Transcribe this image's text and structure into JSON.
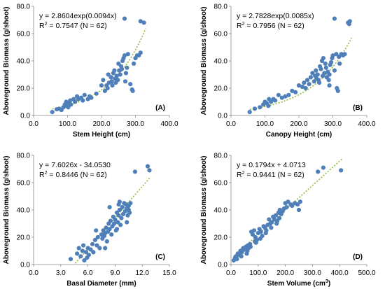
{
  "chart_data": [
    {
      "type": "scatter",
      "panel_label": "(A)",
      "xlabel": "Stem Height (cm)",
      "ylabel": "Aboveground Biomass (g/shoot)",
      "xlim": [
        0,
        400
      ],
      "ylim": [
        0,
        80
      ],
      "xticks": [
        "0.0",
        "100.0",
        "200.0",
        "300.0",
        "400.0"
      ],
      "yticks": [
        "0.0",
        "20.0",
        "40.0",
        "60.0",
        "80.0"
      ],
      "equation": "y = 2.8604exp(0.0094x)",
      "r2_prefix": "R",
      "r2_sup": "2",
      "r2_value": " = 0.7547 (N = 62)",
      "trend": {
        "kind": "exp",
        "a": 2.8604,
        "b": 0.0094,
        "x0": 55,
        "x1": 330
      },
      "legend": "none",
      "grid": false,
      "points": [
        [
          55,
          2.5
        ],
        [
          68,
          4.5
        ],
        [
          75,
          5
        ],
        [
          82,
          4
        ],
        [
          88,
          6
        ],
        [
          92,
          8
        ],
        [
          96,
          10
        ],
        [
          98,
          7
        ],
        [
          102,
          6
        ],
        [
          105,
          9
        ],
        [
          108,
          11
        ],
        [
          110,
          8
        ],
        [
          118,
          12
        ],
        [
          122,
          10
        ],
        [
          128,
          14
        ],
        [
          132,
          12
        ],
        [
          140,
          13
        ],
        [
          145,
          11
        ],
        [
          150,
          15
        ],
        [
          160,
          12
        ],
        [
          165,
          14
        ],
        [
          170,
          13
        ],
        [
          185,
          16
        ],
        [
          200,
          22
        ],
        [
          205,
          26
        ],
        [
          210,
          18
        ],
        [
          215,
          22
        ],
        [
          218,
          20
        ],
        [
          220,
          30
        ],
        [
          222,
          24
        ],
        [
          228,
          28
        ],
        [
          230,
          25
        ],
        [
          232,
          22
        ],
        [
          235,
          31
        ],
        [
          238,
          33
        ],
        [
          240,
          27
        ],
        [
          242,
          24
        ],
        [
          245,
          29
        ],
        [
          248,
          26
        ],
        [
          250,
          38
        ],
        [
          252,
          33
        ],
        [
          255,
          30
        ],
        [
          258,
          36
        ],
        [
          260,
          34
        ],
        [
          262,
          40
        ],
        [
          265,
          42
        ],
        [
          268,
          44
        ],
        [
          270,
          25
        ],
        [
          272,
          31
        ],
        [
          275,
          35
        ],
        [
          278,
          45
        ],
        [
          285,
          23
        ],
        [
          290,
          19
        ],
        [
          292,
          18
        ],
        [
          295,
          38
        ],
        [
          300,
          42
        ],
        [
          305,
          44
        ],
        [
          310,
          44
        ],
        [
          315,
          46
        ],
        [
          268,
          71
        ],
        [
          315,
          69
        ],
        [
          325,
          68
        ]
      ]
    },
    {
      "type": "scatter",
      "panel_label": "(B)",
      "xlabel": "Canopy Height (cm)",
      "ylabel": "Aboveground Biomass (g/shoot)",
      "xlim": [
        0,
        400
      ],
      "ylim": [
        0,
        80
      ],
      "xticks": [
        "0.0",
        "100.0",
        "200.0",
        "300.0",
        "400.0"
      ],
      "yticks": [
        "0.0",
        "20.0",
        "40.0",
        "60.0",
        "80.0"
      ],
      "equation": "y = 2.7828exp(0.0085x)",
      "r2_prefix": "R",
      "r2_sup": "2",
      "r2_value": " = 0.7956 (N = 62)",
      "trend": {
        "kind": "exp",
        "a": 2.7828,
        "b": 0.0085,
        "x0": 55,
        "x1": 355
      },
      "legend": "none",
      "grid": false,
      "points": [
        [
          55,
          2.5
        ],
        [
          70,
          5
        ],
        [
          85,
          6
        ],
        [
          95,
          8
        ],
        [
          100,
          10
        ],
        [
          105,
          9
        ],
        [
          110,
          7
        ],
        [
          112,
          12
        ],
        [
          118,
          10
        ],
        [
          125,
          12
        ],
        [
          130,
          11
        ],
        [
          140,
          15
        ],
        [
          150,
          13
        ],
        [
          160,
          14
        ],
        [
          170,
          15
        ],
        [
          180,
          18
        ],
        [
          190,
          17
        ],
        [
          200,
          22
        ],
        [
          210,
          21
        ],
        [
          215,
          24
        ],
        [
          220,
          20
        ],
        [
          225,
          26
        ],
        [
          230,
          23
        ],
        [
          235,
          28
        ],
        [
          240,
          31
        ],
        [
          245,
          25
        ],
        [
          248,
          29
        ],
        [
          250,
          33
        ],
        [
          252,
          27
        ],
        [
          255,
          30
        ],
        [
          258,
          26
        ],
        [
          260,
          24
        ],
        [
          262,
          36
        ],
        [
          265,
          34
        ],
        [
          268,
          40
        ],
        [
          270,
          29
        ],
        [
          272,
          42
        ],
        [
          275,
          31
        ],
        [
          278,
          38
        ],
        [
          280,
          35
        ],
        [
          282,
          28
        ],
        [
          285,
          32
        ],
        [
          288,
          26
        ],
        [
          290,
          30
        ],
        [
          292,
          37
        ],
        [
          295,
          39
        ],
        [
          298,
          42
        ],
        [
          300,
          44
        ],
        [
          305,
          33
        ],
        [
          310,
          45
        ],
        [
          312,
          20
        ],
        [
          315,
          18
        ],
        [
          318,
          43
        ],
        [
          320,
          38
        ],
        [
          325,
          45
        ],
        [
          330,
          44
        ],
        [
          335,
          45
        ],
        [
          305,
          71
        ],
        [
          345,
          68
        ],
        [
          350,
          69
        ],
        [
          348,
          67
        ],
        [
          290,
          22
        ]
      ]
    },
    {
      "type": "scatter",
      "panel_label": "(C)",
      "xlabel": "Basal Diameter (mm)",
      "ylabel": "Aboveground Biomass (g/shoot)",
      "xlim": [
        0,
        15
      ],
      "ylim": [
        0,
        80
      ],
      "xticks": [
        "0.0",
        "3.0",
        "6.0",
        "9.0",
        "12.0",
        "15.0"
      ],
      "yticks": [
        "0.0",
        "20.0",
        "40.0",
        "60.0",
        "80.0"
      ],
      "equation": "y = 7.6026x - 34.0530",
      "r2_prefix": "R",
      "r2_sup": "2",
      "r2_value": " = 0.8446 (N = 62)",
      "trend": {
        "kind": "linear",
        "a": 7.6026,
        "b": -34.053,
        "x0": 4.6,
        "x1": 12.8
      },
      "legend": "none",
      "grid": false,
      "points": [
        [
          4.1,
          4
        ],
        [
          4.8,
          8
        ],
        [
          5.0,
          12
        ],
        [
          5.2,
          6
        ],
        [
          5.4,
          10
        ],
        [
          5.5,
          14
        ],
        [
          5.6,
          3
        ],
        [
          5.8,
          9
        ],
        [
          6.0,
          12
        ],
        [
          6.1,
          7
        ],
        [
          6.3,
          11
        ],
        [
          6.5,
          15
        ],
        [
          6.6,
          9
        ],
        [
          6.8,
          18
        ],
        [
          7.0,
          14
        ],
        [
          7.1,
          20
        ],
        [
          7.3,
          12
        ],
        [
          7.5,
          22
        ],
        [
          7.6,
          19
        ],
        [
          7.7,
          25
        ],
        [
          7.8,
          21
        ],
        [
          7.9,
          23
        ],
        [
          8.0,
          27
        ],
        [
          8.1,
          17
        ],
        [
          8.2,
          24
        ],
        [
          8.3,
          30
        ],
        [
          8.4,
          26
        ],
        [
          8.5,
          32
        ],
        [
          8.6,
          22
        ],
        [
          8.7,
          28
        ],
        [
          8.8,
          35
        ],
        [
          8.9,
          30
        ],
        [
          9.0,
          33
        ],
        [
          9.1,
          25
        ],
        [
          9.2,
          38
        ],
        [
          9.3,
          31
        ],
        [
          9.4,
          36
        ],
        [
          9.5,
          40
        ],
        [
          9.6,
          29
        ],
        [
          9.7,
          34
        ],
        [
          9.8,
          42
        ],
        [
          9.9,
          37
        ],
        [
          10.0,
          45
        ],
        [
          10.1,
          39
        ],
        [
          10.2,
          44
        ],
        [
          10.3,
          41
        ],
        [
          10.4,
          36
        ],
        [
          10.5,
          43
        ],
        [
          10.6,
          38
        ],
        [
          10.7,
          45
        ],
        [
          9.4,
          44
        ],
        [
          8.4,
          42
        ],
        [
          7.9,
          12
        ],
        [
          9.5,
          46
        ],
        [
          10.3,
          31
        ],
        [
          11.2,
          68
        ],
        [
          12.6,
          72
        ],
        [
          12.8,
          69
        ],
        [
          6.9,
          25
        ],
        [
          9.2,
          26
        ],
        [
          10.5,
          40
        ],
        [
          5.9,
          5
        ]
      ]
    },
    {
      "type": "scatter",
      "panel_label": "(D)",
      "xlabel": "Stem Volume (cm",
      "xlabel_sup": "3",
      "xlabel_end": ")",
      "ylabel": "Aboveground Biomass (g/shoot)",
      "xlim": [
        0,
        500
      ],
      "ylim": [
        0,
        80
      ],
      "xticks": [
        "0.0",
        "100.0",
        "200.0",
        "300.0",
        "400.0",
        "500.0"
      ],
      "yticks": [
        "0.0",
        "20.0",
        "40.0",
        "60.0",
        "80.0"
      ],
      "equation": "y = 0.1794x + 4.0713",
      "r2_prefix": "R",
      "r2_sup": "2",
      "r2_value": " = 0.9441 (N = 62)",
      "trend": {
        "kind": "linear",
        "a": 0.1794,
        "b": 4.0713,
        "x0": 10,
        "x1": 410
      },
      "legend": "none",
      "grid": false,
      "points": [
        [
          10,
          3
        ],
        [
          15,
          5
        ],
        [
          18,
          6
        ],
        [
          22,
          4
        ],
        [
          25,
          8
        ],
        [
          30,
          7
        ],
        [
          35,
          10
        ],
        [
          40,
          9
        ],
        [
          45,
          12
        ],
        [
          50,
          11
        ],
        [
          55,
          13
        ],
        [
          60,
          10
        ],
        [
          62,
          14
        ],
        [
          65,
          12
        ],
        [
          70,
          15
        ],
        [
          75,
          24
        ],
        [
          80,
          22
        ],
        [
          85,
          25
        ],
        [
          90,
          20
        ],
        [
          95,
          18
        ],
        [
          100,
          23
        ],
        [
          105,
          26
        ],
        [
          110,
          24
        ],
        [
          115,
          21
        ],
        [
          120,
          28
        ],
        [
          125,
          27
        ],
        [
          130,
          25
        ],
        [
          135,
          29
        ],
        [
          140,
          33
        ],
        [
          145,
          30
        ],
        [
          150,
          31
        ],
        [
          155,
          35
        ],
        [
          160,
          33
        ],
        [
          165,
          36
        ],
        [
          170,
          32
        ],
        [
          175,
          38
        ],
        [
          180,
          40
        ],
        [
          185,
          37
        ],
        [
          190,
          39
        ],
        [
          195,
          41
        ],
        [
          200,
          45
        ],
        [
          205,
          42
        ],
        [
          210,
          46
        ],
        [
          220,
          44
        ],
        [
          225,
          43
        ],
        [
          235,
          45
        ],
        [
          245,
          44
        ],
        [
          250,
          40
        ],
        [
          255,
          46
        ],
        [
          320,
          68
        ],
        [
          340,
          71
        ],
        [
          405,
          69
        ],
        [
          88,
          17
        ],
        [
          108,
          19
        ],
        [
          128,
          23
        ],
        [
          148,
          27
        ],
        [
          168,
          30
        ],
        [
          178,
          34
        ],
        [
          58,
          8
        ],
        [
          38,
          6
        ],
        [
          72,
          13
        ],
        [
          92,
          16
        ]
      ]
    }
  ]
}
